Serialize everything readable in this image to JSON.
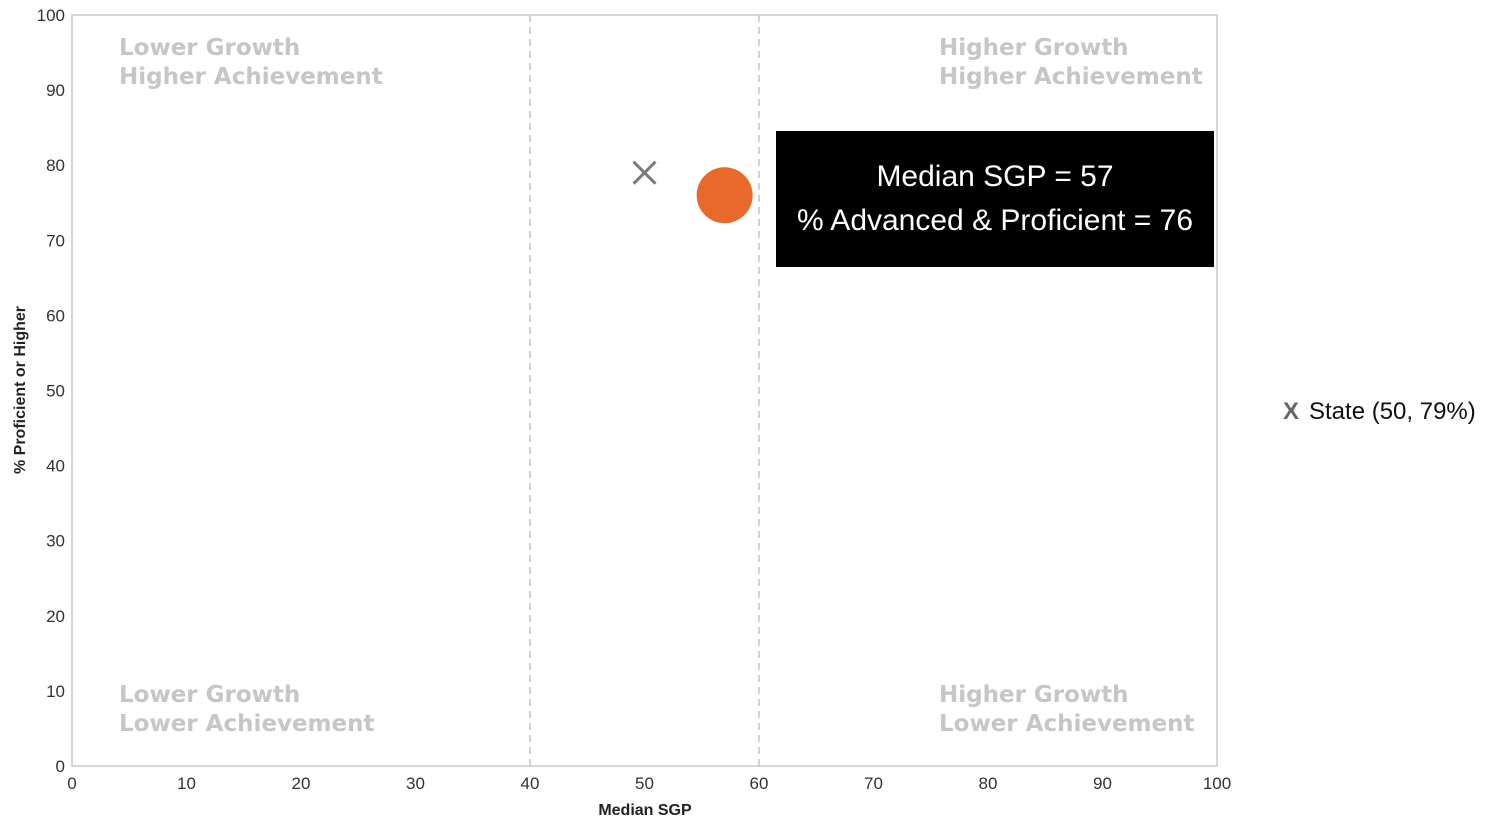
{
  "chart_data": {
    "type": "scatter",
    "xlabel": "Median SGP",
    "ylabel": "% Proficient or Higher",
    "xlim": [
      0,
      100
    ],
    "ylim": [
      0,
      100
    ],
    "x_ticks": [
      0,
      10,
      20,
      30,
      40,
      50,
      60,
      70,
      80,
      90,
      100
    ],
    "y_ticks": [
      0,
      10,
      20,
      30,
      40,
      50,
      60,
      70,
      80,
      90,
      100
    ],
    "reference_lines_x": [
      40,
      60
    ],
    "grid": false,
    "quadrant_labels": {
      "top_left": [
        "Lower Growth",
        "Higher Achievement"
      ],
      "top_right": [
        "Higher Growth",
        "Higher Achievement"
      ],
      "bottom_left": [
        "Lower Growth",
        "Lower Achievement"
      ],
      "bottom_right": [
        "Higher Growth",
        "Lower Achievement"
      ]
    },
    "points": [
      {
        "x": 50,
        "y": 79,
        "marker": "x",
        "color": "#7a7a7a"
      },
      {
        "x": 57,
        "y": 76,
        "marker": "circle",
        "color": "#e8692a"
      }
    ],
    "tooltip": {
      "lines": [
        "Median SGP = 57",
        "% Advanced & Proficient = 76"
      ]
    },
    "legend": {
      "placement": "right",
      "marker": "X",
      "label": "State (50, 79%)"
    }
  }
}
